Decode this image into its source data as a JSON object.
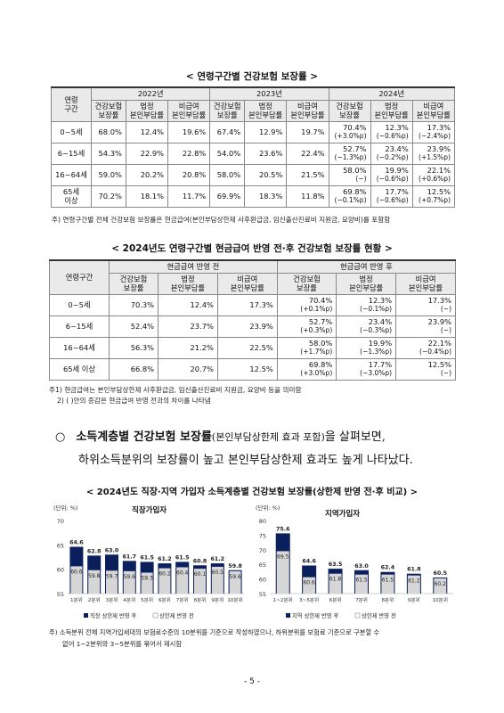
{
  "table1": {
    "title": "< 연령구간별 건강보험 보장률 >",
    "age_header": "연령\n구간",
    "years": [
      "2022년",
      "2023년",
      "2024년"
    ],
    "sub_headers": [
      "건강보험\n보장률",
      "법정\n본인부담률",
      "비급여\n본인부담률"
    ],
    "rows": [
      {
        "age": "0~5세",
        "v2022": [
          "68.0%",
          "12.4%",
          "19.6%"
        ],
        "v2023": [
          "67.4%",
          "12.9%",
          "19.7%"
        ],
        "v2024": [
          [
            "70.4%",
            "(+3.0%p)"
          ],
          [
            "12.3%",
            "(−0.6%p)"
          ],
          [
            "17.3%",
            "(−2.4%p)"
          ]
        ]
      },
      {
        "age": "6~15세",
        "v2022": [
          "54.3%",
          "22.9%",
          "22.8%"
        ],
        "v2023": [
          "54.0%",
          "23.6%",
          "22.4%"
        ],
        "v2024": [
          [
            "52.7%",
            "(−1.3%p)"
          ],
          [
            "23.4%",
            "(−0.2%p)"
          ],
          [
            "23.9%",
            "(+1.5%p)"
          ]
        ]
      },
      {
        "age": "16~64세",
        "v2022": [
          "59.0%",
          "20.2%",
          "20.8%"
        ],
        "v2023": [
          "58.0%",
          "20.5%",
          "21.5%"
        ],
        "v2024": [
          [
            "58.0%",
            "(−)"
          ],
          [
            "19.9%",
            "(−0.6%p)"
          ],
          [
            "22.1%",
            "(+0.6%p)"
          ]
        ]
      },
      {
        "age": "65세\n이상",
        "v2022": [
          "70.2%",
          "18.1%",
          "11.7%"
        ],
        "v2023": [
          "69.9%",
          "18.3%",
          "11.8%"
        ],
        "v2024": [
          [
            "69.8%",
            "(−0.1%p)"
          ],
          [
            "17.7%",
            "(−0.6%p)"
          ],
          [
            "12.5%",
            "(+0.7%p)"
          ]
        ]
      }
    ],
    "note": "주) 연령구간별 전체 건강보험 보장률은 현금급여(본인부담상한제 사후환급금, 임신출산진료비 지원금, 요양비)를 포함함"
  },
  "table2": {
    "title": "< 2024년도 연령구간별 현금급여 반영 전·후 건강보험 보장률 현황 >",
    "age_header": "연령구간",
    "groups": [
      "현금급여 반영 전",
      "현금급여 반영 후"
    ],
    "sub_headers": [
      "건강보험\n보장률",
      "법정\n본인부담률",
      "비급여\n본인부담률"
    ],
    "rows": [
      {
        "age": "0~5세",
        "before": [
          "70.3%",
          "12.4%",
          "17.3%"
        ],
        "after": [
          [
            "70.4%",
            "(+0.1%p)"
          ],
          [
            "12.3%",
            "(−0.1%p)"
          ],
          [
            "17.3%",
            "(−)"
          ]
        ]
      },
      {
        "age": "6~15세",
        "before": [
          "52.4%",
          "23.7%",
          "23.9%"
        ],
        "after": [
          [
            "52.7%",
            "(+0.3%p)"
          ],
          [
            "23.4%",
            "(−0.3%p)"
          ],
          [
            "23.9%",
            "(−)"
          ]
        ]
      },
      {
        "age": "16~64세",
        "before": [
          "56.3%",
          "21.2%",
          "22.5%"
        ],
        "after": [
          [
            "58.0%",
            "(+1.7%p)"
          ],
          [
            "19.9%",
            "(−1.3%p)"
          ],
          [
            "22.1%",
            "(−0.4%p)"
          ]
        ]
      },
      {
        "age": "65세 이상",
        "before": [
          "66.8%",
          "20.7%",
          "12.5%"
        ],
        "after": [
          [
            "69.8%",
            "(+3.0%p)"
          ],
          [
            "17.7%",
            "(−3.0%p)"
          ],
          [
            "12.5%",
            "(−)"
          ]
        ]
      }
    ],
    "note1": "주1) 현금급여는 본인부담상한제 사후환급금, 임신출산진료비 지원금, 요양비 등을 의미함",
    "note2": "2) ( )안의 증감은 현금급여 반영 전과의 차이를 나타냄"
  },
  "paragraph": {
    "bullet": "○",
    "bold": "소득계층별 건강보험 보장률",
    "paren": "(본인부담상한제 효과 포함)",
    "rest1": "을 살펴보면,",
    "line2": "하위소득분위의 보장률이 높고 본인부담상한제 효과도 높게 나타났다."
  },
  "charts_title": "< 2024년도 직장·지역 가입자 소득계층별 건강보험 보장률(상한제 반영 전·후 비교) >",
  "chart_data": [
    {
      "type": "bar",
      "title": "직장가입자",
      "unit": "(단위: %)",
      "categories": [
        "1분위",
        "2분위",
        "3분위",
        "4분위",
        "5분위",
        "6분위",
        "7분위",
        "8분위",
        "9분위",
        "10분위"
      ],
      "series": [
        {
          "name": "직장 상한제 반영 후",
          "values": [
            64.6,
            62.8,
            63.0,
            61.7,
            61.5,
            61.2,
            61.5,
            60.8,
            61.2,
            59.8
          ],
          "color": "#0b1f5c"
        },
        {
          "name": "상한제 반영 전",
          "values": [
            60.6,
            59.8,
            59.7,
            59.6,
            59.3,
            60.2,
            60.4,
            60.1,
            60.5,
            59.6
          ],
          "color": "#d6d6d6"
        }
      ],
      "ylim": [
        55,
        70
      ],
      "yticks": [
        "55",
        "60",
        "65",
        "70"
      ]
    },
    {
      "type": "bar",
      "title": "지역가입자",
      "unit": "(단위: %)",
      "categories": [
        "1~2분위",
        "3~5분위",
        "6분위",
        "7분위",
        "8분위",
        "9분위",
        "10분위"
      ],
      "series": [
        {
          "name": "지역 상한제 반영 후",
          "values": [
            75.6,
            64.6,
            63.5,
            63.0,
            62.4,
            61.8,
            60.5
          ],
          "color": "#0b1f5c"
        },
        {
          "name": "상한제 반영 전",
          "values": [
            69.5,
            60.6,
            61.8,
            61.5,
            61.5,
            61.2,
            60.2
          ],
          "color": "#d6d6d6"
        }
      ],
      "ylim": [
        55,
        80
      ],
      "yticks": [
        "55",
        "60",
        "65",
        "70",
        "75",
        "80"
      ]
    }
  ],
  "chart_note": "주) 소득분위 전체 지역가입세대의 보험료수준의 10분위를 기준으로 작성하였으나, 하위분위를 보험료 기준으로 구분할 수",
  "chart_note2": "없어 1~2분위와 3~5분위를 묶어서 제시함",
  "page_number": "- 5 -"
}
